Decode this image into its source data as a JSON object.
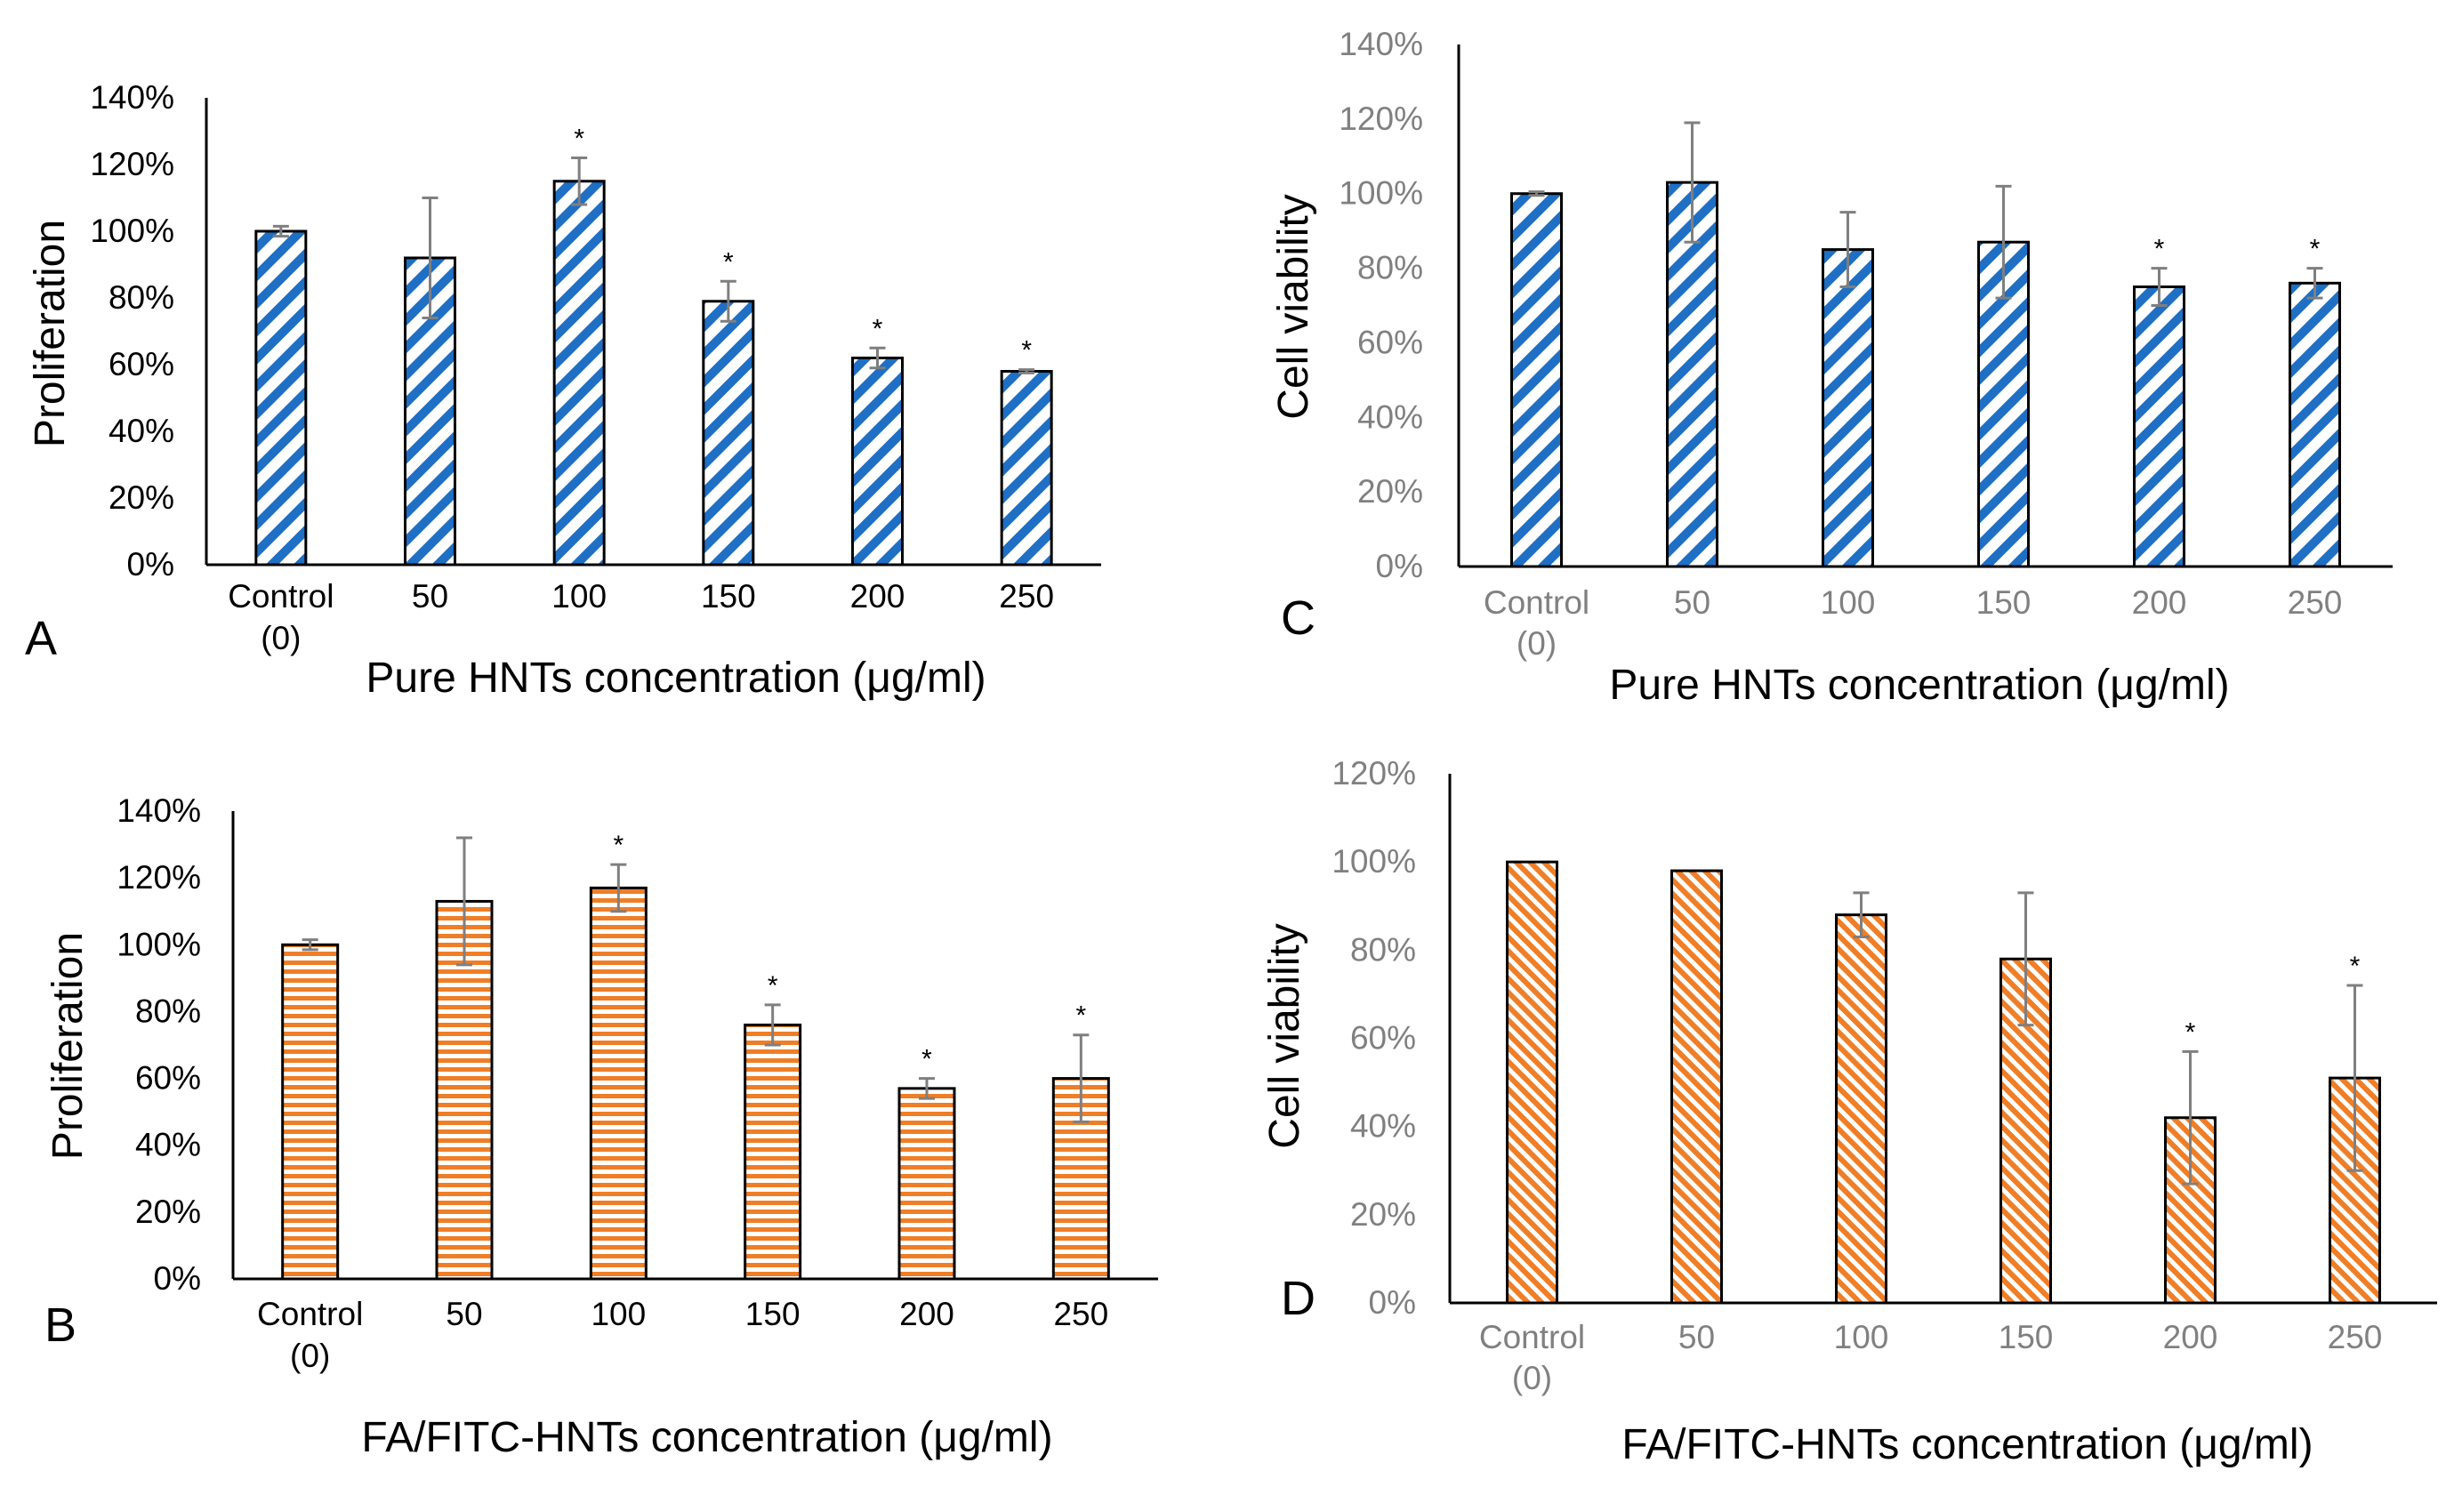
{
  "chart_data": [
    {
      "type": "bar",
      "panel": "A",
      "categories": [
        [
          "Control",
          "(0)"
        ],
        [
          "50"
        ],
        [
          "100"
        ],
        [
          "150"
        ],
        [
          "200"
        ],
        [
          "250"
        ]
      ],
      "values": [
        100,
        92,
        115,
        79,
        62,
        58
      ],
      "errors": [
        1.5,
        18,
        7,
        6,
        3,
        0.5
      ],
      "significant": [
        false,
        false,
        true,
        true,
        true,
        true
      ],
      "significance_marker": "*",
      "xlabel": "Pure HNTs concentration (μg/ml)",
      "ylabel": "Proliferation",
      "ylim": [
        0,
        140
      ],
      "yticks": [
        0,
        20,
        40,
        60,
        80,
        100,
        120,
        140
      ],
      "tick_suffix": "%",
      "pattern": "diagonal-stripes",
      "color": "#1f6fc4",
      "text_color": "#000000"
    },
    {
      "type": "bar",
      "panel": "B",
      "categories": [
        [
          "Control",
          "(0)"
        ],
        [
          "50"
        ],
        [
          "100"
        ],
        [
          "150"
        ],
        [
          "200"
        ],
        [
          "250"
        ]
      ],
      "values": [
        100,
        113,
        117,
        76,
        57,
        60
      ],
      "errors": [
        1.5,
        19,
        7,
        6,
        3,
        13
      ],
      "significant": [
        false,
        false,
        true,
        true,
        true,
        true
      ],
      "significance_marker": "*",
      "xlabel": "FA/FITC-HNTs concentration (μg/ml)",
      "ylabel": "Proliferation",
      "ylim": [
        0,
        140
      ],
      "yticks": [
        0,
        20,
        40,
        60,
        80,
        100,
        120,
        140
      ],
      "tick_suffix": "%",
      "pattern": "horizontal-stripes",
      "color": "#f07e26",
      "text_color": "#000000"
    },
    {
      "type": "bar",
      "panel": "C",
      "categories": [
        [
          "Control",
          "(0)"
        ],
        [
          "50"
        ],
        [
          "100"
        ],
        [
          "150"
        ],
        [
          "200"
        ],
        [
          "250"
        ]
      ],
      "values": [
        100,
        103,
        85,
        87,
        75,
        76
      ],
      "errors": [
        0.5,
        16,
        10,
        15,
        5,
        4
      ],
      "significant": [
        false,
        false,
        false,
        false,
        true,
        true
      ],
      "significance_marker": "*",
      "xlabel": "Pure HNTs concentration (μg/ml)",
      "ylabel": "Cell viability",
      "ylim": [
        0,
        140
      ],
      "yticks": [
        0,
        20,
        40,
        60,
        80,
        100,
        120,
        140
      ],
      "tick_suffix": "%",
      "pattern": "diagonal-stripes",
      "color": "#1f6fc4",
      "text_color": "#808080"
    },
    {
      "type": "bar",
      "panel": "D",
      "categories": [
        [
          "Control",
          "(0)"
        ],
        [
          "50"
        ],
        [
          "100"
        ],
        [
          "150"
        ],
        [
          "200"
        ],
        [
          "250"
        ]
      ],
      "values": [
        100,
        98,
        88,
        78,
        42,
        51
      ],
      "errors": [
        0,
        0,
        5,
        15,
        15,
        21
      ],
      "significant": [
        false,
        false,
        false,
        false,
        true,
        true
      ],
      "significance_marker": "*",
      "xlabel": "FA/FITC-HNTs  concentration (μg/ml)",
      "ylabel": "Cell viability",
      "ylim": [
        0,
        120
      ],
      "yticks": [
        0,
        20,
        40,
        60,
        80,
        100,
        120
      ],
      "tick_suffix": "%",
      "pattern": "diagonal-stripes-dense",
      "color": "#f07e26",
      "text_color": "#808080"
    }
  ]
}
